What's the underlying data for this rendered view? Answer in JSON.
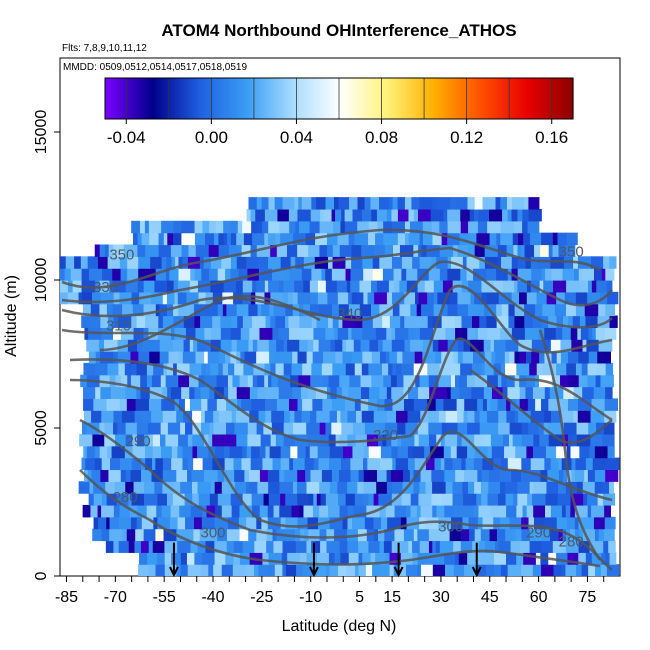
{
  "chart_data": {
    "type": "heatmap",
    "title": "ATOM4 Northbound OHInterference_ATHOS",
    "subtitle_flights": "Flts: 7,8,9,10,11,12",
    "subtitle_dates": "MMDD: 0509,0512,0514,0517,0518,0519",
    "xlabel": "Latitude (deg N)",
    "ylabel": "Altitude (m)",
    "xlim": [
      -87,
      85
    ],
    "ylim": [
      0,
      17500
    ],
    "x_ticks": [
      -85,
      -70,
      -55,
      -40,
      -25,
      -10,
      5,
      15,
      30,
      45,
      60,
      75
    ],
    "y_ticks": [
      0,
      5000,
      10000,
      15000
    ],
    "colorbar": {
      "range": [
        -0.05,
        0.17
      ],
      "ticks": [
        "-0.04",
        "0.00",
        "0.04",
        "0.08",
        "0.12",
        "0.16"
      ],
      "colors": [
        "#7a00ff",
        "#00008b",
        "#1f5fe0",
        "#3a9cf5",
        "#a8dcff",
        "#ffffff",
        "#fff27a",
        "#ffb000",
        "#ff5000",
        "#e80000",
        "#8b0000"
      ]
    },
    "contour_labels": [
      {
        "text": "350",
        "lat": -68,
        "alt": 10700
      },
      {
        "text": "330",
        "lat": -73,
        "alt": 9600
      },
      {
        "text": "310",
        "lat": -69,
        "alt": 8300
      },
      {
        "text": "290",
        "lat": -63,
        "alt": 4400
      },
      {
        "text": "280",
        "lat": -67,
        "alt": 2500
      },
      {
        "text": "300",
        "lat": -40,
        "alt": 1300
      },
      {
        "text": "340",
        "lat": 2,
        "alt": 8700
      },
      {
        "text": "320",
        "lat": 13,
        "alt": 4600
      },
      {
        "text": "300",
        "lat": 33,
        "alt": 1500
      },
      {
        "text": "290",
        "lat": 60,
        "alt": 1300
      },
      {
        "text": "280",
        "lat": 70,
        "alt": 1000
      },
      {
        "text": "350",
        "lat": 70,
        "alt": 10800
      }
    ],
    "arrows_lat": [
      -52,
      -9,
      17,
      41
    ]
  }
}
